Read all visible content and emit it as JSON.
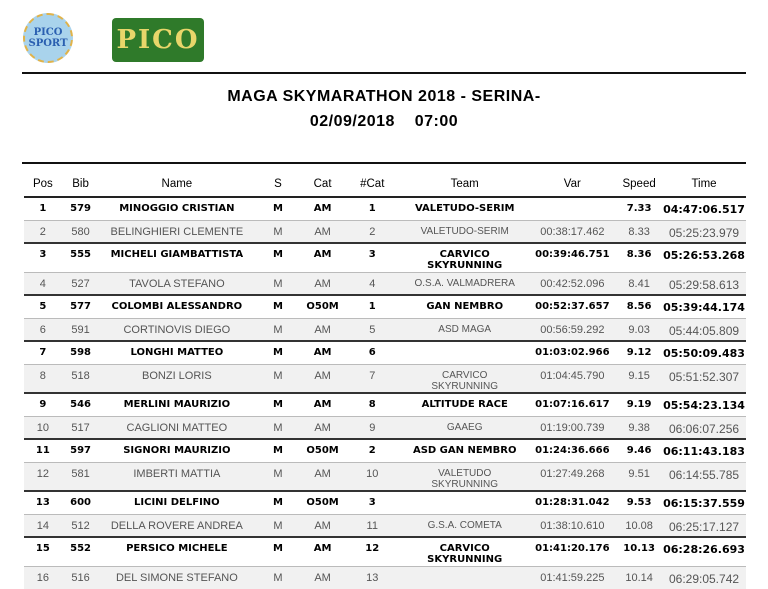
{
  "logos": {
    "left": "PICO SPORT",
    "right": "PICO"
  },
  "title": "MAGA SKYMARATHON 2018 - SERINA-",
  "subtitle": "02/09/2018    07:00",
  "columns": [
    "Pos",
    "Bib",
    "Name",
    "S",
    "Cat",
    "#Cat",
    "Team",
    "Var",
    "Speed",
    "Time"
  ],
  "rows": [
    {
      "pos": "1",
      "bib": "579",
      "name": "MINOGGIO CRISTIAN",
      "s": "M",
      "cat": "AM",
      "ncat": "1",
      "team": "VALETUDO-SERIM",
      "var": "",
      "speed": "7.33",
      "time": "04:47:06.517"
    },
    {
      "pos": "2",
      "bib": "580",
      "name": "BELINGHIERI CLEMENTE",
      "s": "M",
      "cat": "AM",
      "ncat": "2",
      "team": "VALETUDO-SERIM",
      "var": "00:38:17.462",
      "speed": "8.33",
      "time": "05:25:23.979"
    },
    {
      "pos": "3",
      "bib": "555",
      "name": "MICHELI GIAMBATTISTA",
      "s": "M",
      "cat": "AM",
      "ncat": "3",
      "team": "CARVICO SKYRUNNING",
      "var": "00:39:46.751",
      "speed": "8.36",
      "time": "05:26:53.268"
    },
    {
      "pos": "4",
      "bib": "527",
      "name": "TAVOLA STEFANO",
      "s": "M",
      "cat": "AM",
      "ncat": "4",
      "team": "O.S.A. VALMADRERA",
      "var": "00:42:52.096",
      "speed": "8.41",
      "time": "05:29:58.613"
    },
    {
      "pos": "5",
      "bib": "577",
      "name": "COLOMBI ALESSANDRO",
      "s": "M",
      "cat": "O50M",
      "ncat": "1",
      "team": "GAN NEMBRO",
      "var": "00:52:37.657",
      "speed": "8.56",
      "time": "05:39:44.174"
    },
    {
      "pos": "6",
      "bib": "591",
      "name": "CORTINOVIS DIEGO",
      "s": "M",
      "cat": "AM",
      "ncat": "5",
      "team": "ASD MAGA",
      "var": "00:56:59.292",
      "speed": "9.03",
      "time": "05:44:05.809"
    },
    {
      "pos": "7",
      "bib": "598",
      "name": "LONGHI MATTEO",
      "s": "M",
      "cat": "AM",
      "ncat": "6",
      "team": "",
      "var": "01:03:02.966",
      "speed": "9.12",
      "time": "05:50:09.483"
    },
    {
      "pos": "8",
      "bib": "518",
      "name": "BONZI LORIS",
      "s": "M",
      "cat": "AM",
      "ncat": "7",
      "team": "CARVICO SKYRUNNING",
      "var": "01:04:45.790",
      "speed": "9.15",
      "time": "05:51:52.307"
    },
    {
      "pos": "9",
      "bib": "546",
      "name": "MERLINI MAURIZIO",
      "s": "M",
      "cat": "AM",
      "ncat": "8",
      "team": "ALTITUDE RACE",
      "var": "01:07:16.617",
      "speed": "9.19",
      "time": "05:54:23.134"
    },
    {
      "pos": "10",
      "bib": "517",
      "name": "CAGLIONI MATTEO",
      "s": "M",
      "cat": "AM",
      "ncat": "9",
      "team": "GAAEG",
      "var": "01:19:00.739",
      "speed": "9.38",
      "time": "06:06:07.256"
    },
    {
      "pos": "11",
      "bib": "597",
      "name": "SIGNORI MAURIZIO",
      "s": "M",
      "cat": "O50M",
      "ncat": "2",
      "team": "ASD GAN NEMBRO",
      "var": "01:24:36.666",
      "speed": "9.46",
      "time": "06:11:43.183"
    },
    {
      "pos": "12",
      "bib": "581",
      "name": "IMBERTI MATTIA",
      "s": "M",
      "cat": "AM",
      "ncat": "10",
      "team": "VALETUDO SKYRUNNING",
      "var": "01:27:49.268",
      "speed": "9.51",
      "time": "06:14:55.785"
    },
    {
      "pos": "13",
      "bib": "600",
      "name": "LICINI DELFINO",
      "s": "M",
      "cat": "O50M",
      "ncat": "3",
      "team": "",
      "var": "01:28:31.042",
      "speed": "9.53",
      "time": "06:15:37.559"
    },
    {
      "pos": "14",
      "bib": "512",
      "name": "DELLA ROVERE ANDREA",
      "s": "M",
      "cat": "AM",
      "ncat": "11",
      "team": "G.S.A. COMETA",
      "var": "01:38:10.610",
      "speed": "10.08",
      "time": "06:25:17.127"
    },
    {
      "pos": "15",
      "bib": "552",
      "name": "PERSICO MICHELE",
      "s": "M",
      "cat": "AM",
      "ncat": "12",
      "team": "CARVICO SKYRUNNING",
      "var": "01:41:20.176",
      "speed": "10.13",
      "time": "06:28:26.693"
    },
    {
      "pos": "16",
      "bib": "516",
      "name": "DEL SIMONE STEFANO",
      "s": "M",
      "cat": "AM",
      "ncat": "13",
      "team": "",
      "var": "01:41:59.225",
      "speed": "10.14",
      "time": "06:29:05.742"
    }
  ]
}
